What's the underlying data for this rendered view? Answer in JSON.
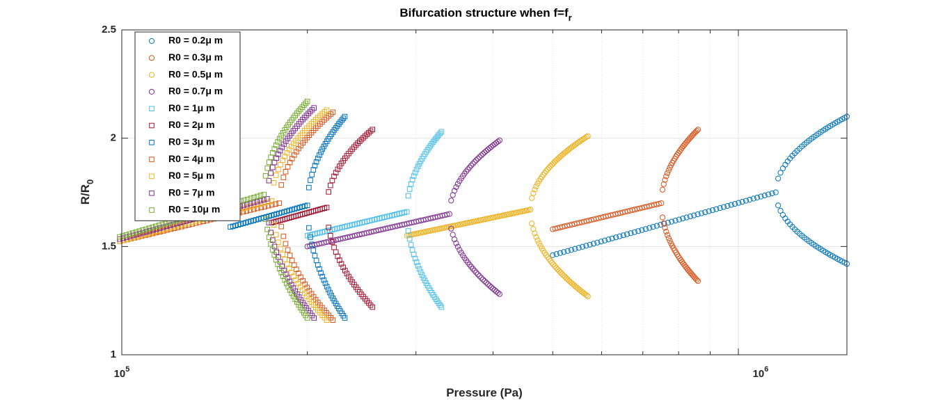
{
  "chart_data": {
    "type": "scatter",
    "title": {
      "base": "Bifurcation structure when f=f",
      "subscript": "r"
    },
    "xlabel": "Pressure (Pa)",
    "ylabel": {
      "base": "R/R",
      "subscript": "0"
    },
    "xscale": "log",
    "xlim": [
      100000,
      1500000
    ],
    "ylim": [
      1,
      2.5
    ],
    "xticks": [
      {
        "value": 100000,
        "base": "10",
        "exp": "5"
      },
      {
        "value": 1000000,
        "base": "10",
        "exp": "6"
      }
    ],
    "yticks": [
      {
        "value": 1,
        "label": "1"
      },
      {
        "value": 1.5,
        "label": "1.5"
      },
      {
        "value": 2,
        "label": "2"
      },
      {
        "value": 2.5,
        "label": "2.5"
      }
    ],
    "grid": true,
    "legend_position": "top-left",
    "series": [
      {
        "name": "R0 = 0.2μ m",
        "marker": "circle",
        "color": "#0072BD",
        "p_start": 500000,
        "p_bif": 1150000,
        "p_end": 1500000,
        "y_start": 1.46,
        "y_bif": 1.75,
        "y_top": 2.1,
        "y_bot": 1.42,
        "n_pre": 60,
        "n_branch": 30
      },
      {
        "name": "R0 = 0.3μ m",
        "marker": "circle",
        "color": "#D95319",
        "p_start": 500000,
        "p_bif": 750000,
        "p_end": 860000,
        "y_start": 1.58,
        "y_bif": 1.7,
        "y_top": 2.04,
        "y_bot": 1.34,
        "n_pre": 45,
        "n_branch": 30
      },
      {
        "name": "R0 = 0.5μ m",
        "marker": "circle",
        "color": "#EDB120",
        "p_start": 290000,
        "p_bif": 460000,
        "p_end": 570000,
        "y_start": 1.55,
        "y_bif": 1.67,
        "y_top": 2.01,
        "y_bot": 1.27,
        "n_pre": 70,
        "n_branch": 40
      },
      {
        "name": "R0 = 0.7μ m",
        "marker": "circle",
        "color": "#7E2F8E",
        "p_start": 200000,
        "p_bif": 340000,
        "p_end": 410000,
        "y_start": 1.5,
        "y_bif": 1.65,
        "y_top": 1.99,
        "y_bot": 1.28,
        "n_pre": 60,
        "n_branch": 30
      },
      {
        "name": "R0 = 1μ m",
        "marker": "square",
        "color": "#4DBEEE",
        "p_start": 200000,
        "p_bif": 290000,
        "p_end": 330000,
        "y_start": 1.55,
        "y_bif": 1.66,
        "y_top": 2.03,
        "y_bot": 1.22,
        "n_pre": 40,
        "n_branch": 25
      },
      {
        "name": "R0 = 2μ m",
        "marker": "square",
        "color": "#A2142F",
        "p_start": 175000,
        "p_bif": 215000,
        "p_end": 255000,
        "y_start": 1.61,
        "y_bif": 1.68,
        "y_top": 2.04,
        "y_bot": 1.22,
        "n_pre": 25,
        "n_branch": 25
      },
      {
        "name": "R0 = 3μ m",
        "marker": "square",
        "color": "#0072BD",
        "p_start": 150000,
        "p_bif": 200000,
        "p_end": 230000,
        "y_start": 1.59,
        "y_bif": 1.69,
        "y_top": 2.1,
        "y_bot": 1.17,
        "n_pre": 30,
        "n_branch": 25
      },
      {
        "name": "R0 = 4μ m",
        "marker": "square",
        "color": "#D95319",
        "p_start": 98000,
        "p_bif": 180000,
        "p_end": 220000,
        "y_start": 1.52,
        "y_bif": 1.7,
        "y_top": 2.12,
        "y_bot": 1.16,
        "n_pre": 45,
        "n_branch": 25
      },
      {
        "name": "R0 = 5μ m",
        "marker": "square",
        "color": "#EDB120",
        "p_start": 98000,
        "p_bif": 175000,
        "p_end": 215000,
        "y_start": 1.52,
        "y_bif": 1.71,
        "y_top": 2.13,
        "y_bot": 1.16,
        "n_pre": 45,
        "n_branch": 25
      },
      {
        "name": "R0 = 7μ m",
        "marker": "square",
        "color": "#7E2F8E",
        "p_start": 98000,
        "p_bif": 172000,
        "p_end": 205000,
        "y_start": 1.53,
        "y_bif": 1.72,
        "y_top": 2.14,
        "y_bot": 1.17,
        "n_pre": 45,
        "n_branch": 25
      },
      {
        "name": "R0 = 10μ m",
        "marker": "square",
        "color": "#77AC30",
        "p_start": 98000,
        "p_bif": 170000,
        "p_end": 200000,
        "y_start": 1.54,
        "y_bif": 1.74,
        "y_top": 2.17,
        "y_bot": 1.17,
        "n_pre": 45,
        "n_branch": 25
      }
    ]
  }
}
